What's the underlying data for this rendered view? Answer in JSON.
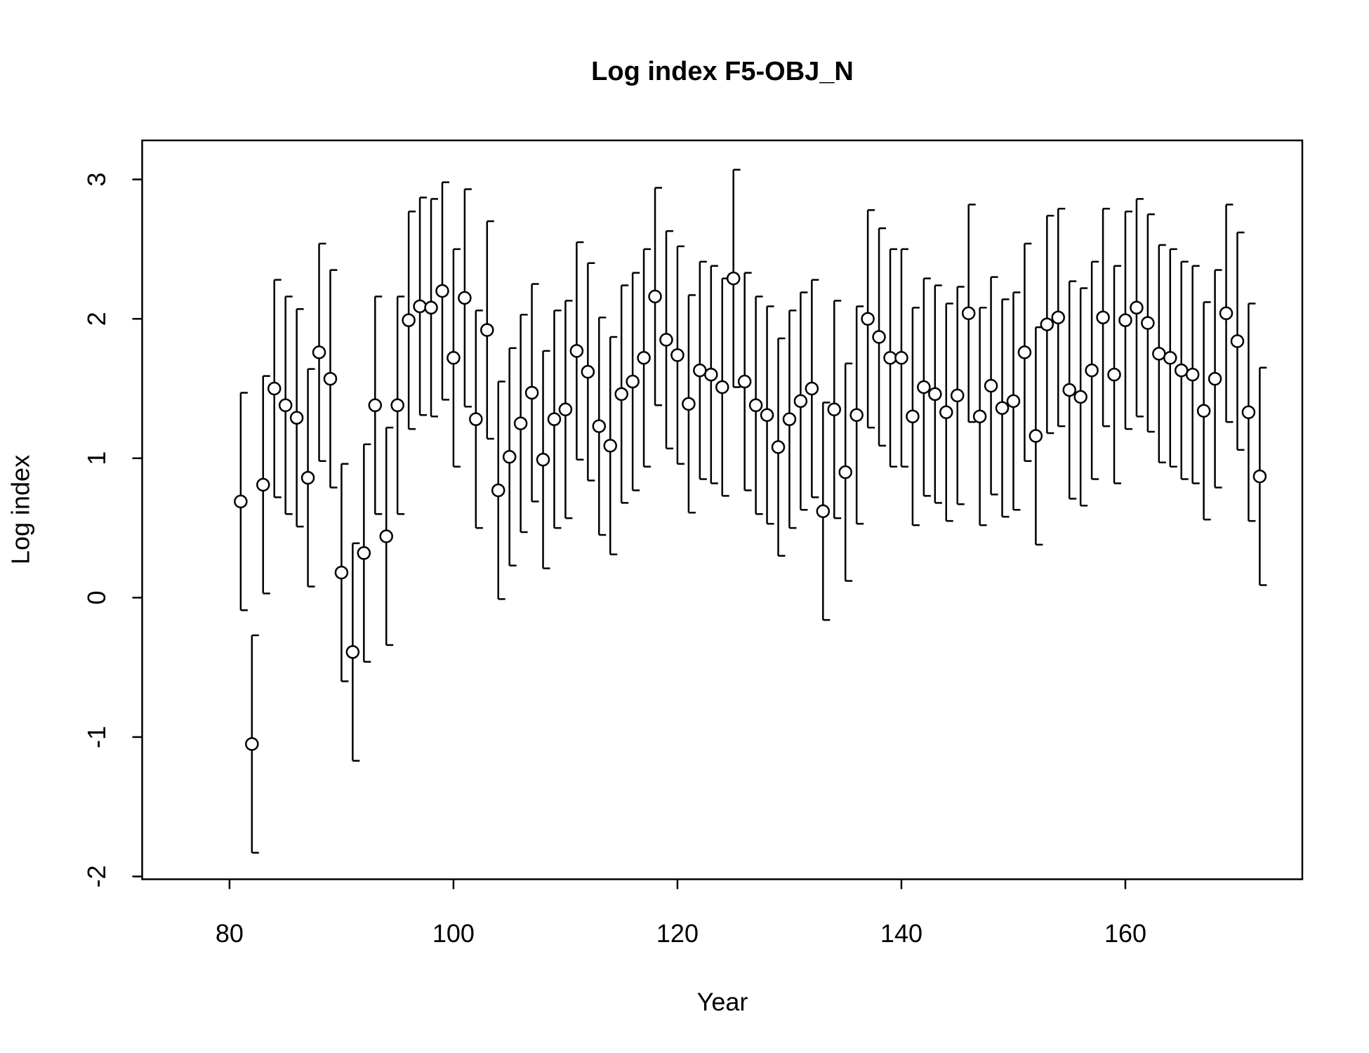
{
  "chart_data": {
    "type": "errorbar",
    "title": "Log index F5-OBJ_N",
    "x_label": "Year",
    "y_label": "Log index",
    "x": [
      81,
      82,
      83,
      84,
      85,
      86,
      87,
      88,
      89,
      90,
      91,
      92,
      93,
      94,
      95,
      96,
      97,
      98,
      99,
      100,
      101,
      102,
      103,
      104,
      105,
      106,
      107,
      108,
      109,
      110,
      111,
      112,
      113,
      114,
      115,
      116,
      117,
      118,
      119,
      120,
      121,
      122,
      123,
      124,
      125,
      126,
      127,
      128,
      129,
      130,
      131,
      132,
      133,
      134,
      135,
      136,
      137,
      138,
      139,
      140,
      141,
      142,
      143,
      144,
      145,
      146,
      147,
      148,
      149,
      150,
      151,
      152,
      153,
      154,
      155,
      156,
      157,
      158,
      159,
      160,
      161,
      162,
      163,
      164,
      165,
      166,
      167,
      168,
      169,
      170,
      171,
      172
    ],
    "values": [
      0.69,
      -1.05,
      0.81,
      1.5,
      1.38,
      1.29,
      0.86,
      1.76,
      1.57,
      0.18,
      -0.39,
      0.32,
      1.38,
      0.44,
      1.38,
      1.99,
      2.09,
      2.08,
      2.2,
      1.72,
      2.15,
      1.28,
      1.92,
      0.77,
      1.01,
      1.25,
      1.47,
      0.99,
      1.28,
      1.35,
      1.77,
      1.62,
      1.23,
      1.09,
      1.46,
      1.55,
      1.72,
      2.16,
      1.85,
      1.74,
      1.39,
      1.63,
      1.6,
      1.51,
      2.29,
      1.55,
      1.38,
      1.31,
      1.08,
      1.28,
      1.41,
      1.5,
      0.62,
      1.35,
      0.9,
      1.31,
      2.0,
      1.87,
      1.72,
      1.72,
      1.3,
      1.51,
      1.46,
      1.33,
      1.45,
      2.04,
      1.3,
      1.52,
      1.36,
      1.41,
      1.76,
      1.16,
      1.96,
      2.01,
      1.49,
      1.44,
      1.63,
      2.01,
      1.6,
      1.99,
      2.08,
      1.97,
      1.75,
      1.72,
      1.63,
      1.6,
      1.34,
      1.57,
      2.04,
      1.84,
      1.33,
      0.87
    ],
    "errors": [
      0.78,
      0.78,
      0.78,
      0.78,
      0.78,
      0.78,
      0.78,
      0.78,
      0.78,
      0.78,
      0.78,
      0.78,
      0.78,
      0.78,
      0.78,
      0.78,
      0.78,
      0.78,
      0.78,
      0.78,
      0.78,
      0.78,
      0.78,
      0.78,
      0.78,
      0.78,
      0.78,
      0.78,
      0.78,
      0.78,
      0.78,
      0.78,
      0.78,
      0.78,
      0.78,
      0.78,
      0.78,
      0.78,
      0.78,
      0.78,
      0.78,
      0.78,
      0.78,
      0.78,
      0.78,
      0.78,
      0.78,
      0.78,
      0.78,
      0.78,
      0.78,
      0.78,
      0.78,
      0.78,
      0.78,
      0.78,
      0.78,
      0.78,
      0.78,
      0.78,
      0.78,
      0.78,
      0.78,
      0.78,
      0.78,
      0.78,
      0.78,
      0.78,
      0.78,
      0.78,
      0.78,
      0.78,
      0.78,
      0.78,
      0.78,
      0.78,
      0.78,
      0.78,
      0.78,
      0.78,
      0.78,
      0.78,
      0.78,
      0.78,
      0.78,
      0.78,
      0.78,
      0.78,
      0.78,
      0.78,
      0.78,
      0.78
    ],
    "color": "#000000",
    "marker_fill": "#ffffff",
    "xlim": [
      72.2,
      175.8
    ],
    "ylim": [
      -2.02,
      3.28
    ],
    "xticks": [
      80,
      100,
      120,
      140,
      160
    ],
    "yticks": [
      -2,
      -1,
      0,
      1,
      2,
      3
    ]
  }
}
